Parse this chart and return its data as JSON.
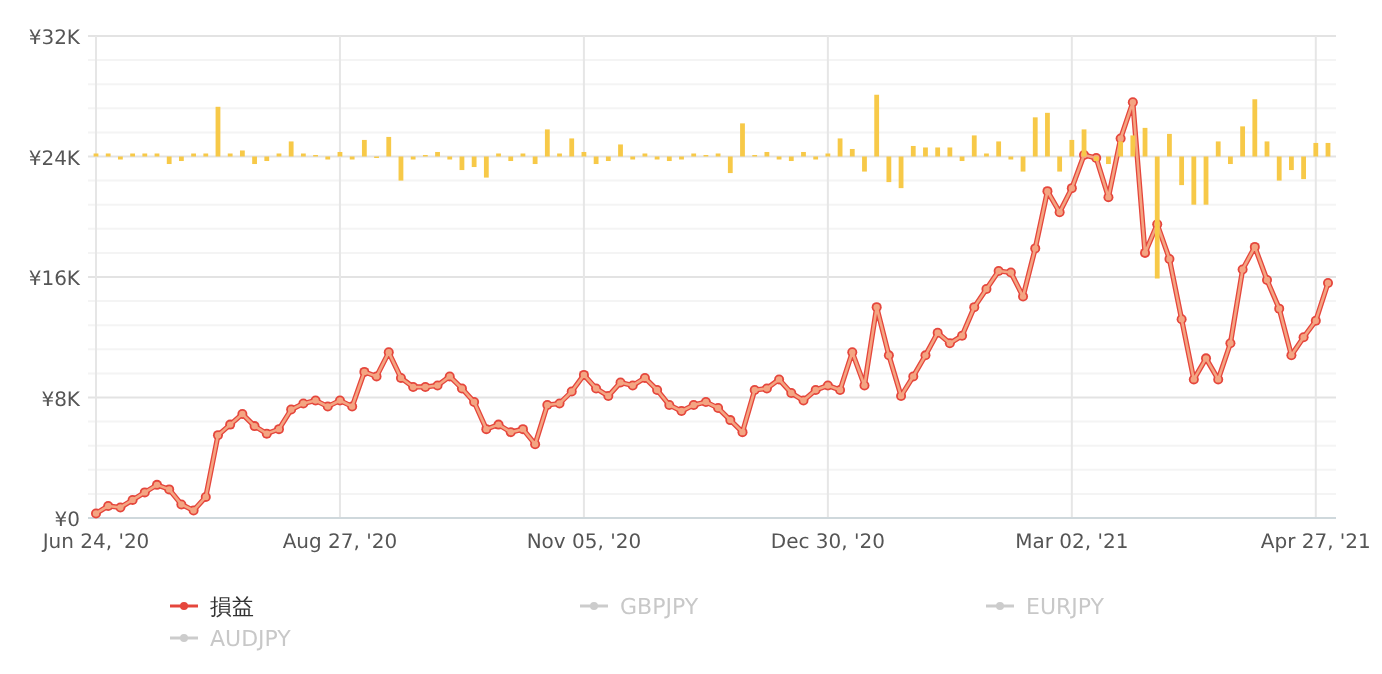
{
  "chart_data": {
    "type": "line",
    "categories": [
      "Jun 24, '20",
      null,
      null,
      null,
      null,
      null,
      null,
      null,
      null,
      null,
      null,
      null,
      null,
      null,
      null,
      null,
      null,
      null,
      null,
      null,
      "Aug 27, '20",
      null,
      null,
      null,
      null,
      null,
      null,
      null,
      null,
      null,
      null,
      null,
      null,
      null,
      null,
      null,
      null,
      null,
      null,
      null,
      "Nov 05, '20",
      null,
      null,
      null,
      null,
      null,
      null,
      null,
      null,
      null,
      null,
      null,
      null,
      null,
      null,
      null,
      null,
      null,
      null,
      null,
      "Dec 30, '20",
      null,
      null,
      null,
      null,
      null,
      null,
      null,
      null,
      null,
      null,
      null,
      null,
      null,
      null,
      null,
      null,
      null,
      null,
      null,
      "Mar 02, '21",
      null,
      null,
      null,
      null,
      null,
      null,
      null,
      null,
      null,
      null,
      null,
      null,
      null,
      null,
      null,
      null,
      null,
      null,
      null,
      "Apr 27, '21",
      null
    ],
    "series": [
      {
        "type": "bar",
        "color": "#f7c948",
        "base": [
          24000,
          24000,
          24000,
          24000,
          24000,
          24000,
          24000,
          24000,
          24000,
          24000,
          24000,
          24000,
          24000,
          24000,
          24000,
          24000,
          24000,
          24000,
          24000,
          24000,
          24000,
          24000,
          24000,
          24000,
          24000,
          24000,
          24000,
          24000,
          24000,
          24000,
          24000,
          24000,
          24000,
          24000,
          24000,
          24000,
          24000,
          24000,
          24000,
          24000,
          24000,
          24000,
          24000,
          24000,
          24000,
          24000,
          24000,
          24000,
          24000,
          24000,
          24000,
          24000,
          24000,
          24000,
          24000,
          24000,
          24000,
          24000,
          24000,
          24000,
          24000,
          24000,
          24000,
          24000,
          24000,
          24000,
          24000,
          24000,
          24000,
          24000,
          24000,
          24000,
          24000,
          24000,
          24000,
          24000,
          24000,
          24000,
          24000,
          24000,
          24000,
          24000,
          24000,
          24000,
          24000,
          24000,
          24000,
          24000,
          24000,
          24000,
          24000,
          24000,
          24000,
          24000,
          24000,
          24000,
          24000,
          24000,
          24000,
          24000,
          24000,
          24000
        ],
        "values": [
          200,
          200,
          -200,
          200,
          200,
          200,
          -500,
          -300,
          200,
          200,
          3300,
          200,
          400,
          -500,
          -300,
          200,
          1000,
          200,
          100,
          -200,
          300,
          -200,
          1100,
          -100,
          1300,
          -1600,
          -200,
          100,
          300,
          -200,
          -900,
          -700,
          -1400,
          200,
          -300,
          200,
          -500,
          1800,
          200,
          1200,
          300,
          -500,
          -300,
          800,
          -200,
          200,
          -200,
          -300,
          -200,
          200,
          100,
          200,
          -1100,
          2200,
          100,
          300,
          -200,
          -300,
          300,
          -200,
          200,
          1200,
          500,
          -1000,
          4100,
          -1700,
          -2100,
          700,
          600,
          600,
          600,
          -300,
          1400,
          200,
          1000,
          -200,
          -1000,
          2600,
          2900,
          -1000,
          1100,
          1800,
          -300,
          -500,
          1000,
          1400,
          1900,
          -8100,
          1500,
          -1900,
          -3200,
          -3200,
          1000,
          -500,
          2000,
          3800,
          1000,
          -1600,
          -900,
          -1500,
          900,
          900
        ]
      },
      {
        "name": "損益",
        "color": "#e5463c",
        "values": [
          300,
          800,
          700,
          1200,
          1700,
          2200,
          1900,
          900,
          500,
          1400,
          5500,
          6200,
          6900,
          6100,
          5600,
          5900,
          7200,
          7600,
          7800,
          7400,
          7800,
          7400,
          9700,
          9400,
          11000,
          9300,
          8700,
          8700,
          8800,
          9400,
          8600,
          7700,
          5900,
          6200,
          5700,
          5900,
          4900,
          7500,
          7600,
          8400,
          9500,
          8600,
          8100,
          9000,
          8800,
          9300,
          8500,
          7500,
          7100,
          7500,
          7700,
          7300,
          6500,
          5700,
          8500,
          8600,
          9200,
          8300,
          7800,
          8500,
          8800,
          8500,
          11000,
          8800,
          14000,
          10800,
          8100,
          9400,
          10800,
          12300,
          11600,
          12100,
          14000,
          15200,
          16400,
          16300,
          14700,
          17900,
          21700,
          20300,
          21900,
          24100,
          23900,
          21300,
          25200,
          27600,
          17600,
          19500,
          17200,
          13200,
          9200,
          10600,
          9200,
          11600,
          16500,
          18000,
          15800,
          13900,
          10800,
          12000,
          13100,
          15600
        ]
      },
      {
        "name": "GBPJPY",
        "color": "#cccccc",
        "values": [
          null,
          null,
          null,
          null,
          null,
          null,
          null,
          null,
          null,
          null,
          null,
          null,
          null,
          null,
          null,
          null,
          null,
          null,
          null,
          null,
          null,
          null,
          null,
          null,
          null,
          null,
          null,
          null,
          null,
          null,
          null,
          null,
          null,
          null,
          null,
          null,
          null,
          null,
          null,
          null,
          null,
          null,
          null,
          null,
          null,
          null,
          null,
          null,
          null,
          null,
          null,
          null,
          null,
          null,
          null,
          null,
          null,
          null,
          null,
          null,
          null,
          null,
          null,
          null,
          null,
          null,
          null,
          null,
          null,
          null,
          null,
          null,
          null,
          null,
          null,
          null,
          null,
          null,
          null,
          null,
          null,
          null,
          null,
          null,
          null,
          null,
          null,
          null,
          null,
          null,
          null,
          null,
          null,
          null,
          null,
          null,
          null,
          null,
          null,
          null,
          null,
          null
        ]
      },
      {
        "name": "EURJPY",
        "color": "#cccccc",
        "values": [
          null,
          null,
          null,
          null,
          null,
          null,
          null,
          null,
          null,
          null,
          null,
          null,
          null,
          null,
          null,
          null,
          null,
          null,
          null,
          null,
          null,
          null,
          null,
          null,
          null,
          null,
          null,
          null,
          null,
          null,
          null,
          null,
          null,
          null,
          null,
          null,
          null,
          null,
          null,
          null,
          null,
          null,
          null,
          null,
          null,
          null,
          null,
          null,
          null,
          null,
          null,
          null,
          null,
          null,
          null,
          null,
          null,
          null,
          null,
          null,
          null,
          null,
          null,
          null,
          null,
          null,
          null,
          null,
          null,
          null,
          null,
          null,
          null,
          null,
          null,
          null,
          null,
          null,
          null,
          null,
          null,
          null,
          null,
          null,
          null,
          null,
          null,
          null,
          null,
          null,
          null,
          null,
          null,
          null,
          null,
          null,
          null,
          null,
          null,
          null,
          null,
          null
        ]
      },
      {
        "name": "AUDJPY",
        "color": "#cccccc",
        "values": [
          null,
          null,
          null,
          null,
          null,
          null,
          null,
          null,
          null,
          null,
          null,
          null,
          null,
          null,
          null,
          null,
          null,
          null,
          null,
          null,
          null,
          null,
          null,
          null,
          null,
          null,
          null,
          null,
          null,
          null,
          null,
          null,
          null,
          null,
          null,
          null,
          null,
          null,
          null,
          null,
          null,
          null,
          null,
          null,
          null,
          null,
          null,
          null,
          null,
          null,
          null,
          null,
          null,
          null,
          null,
          null,
          null,
          null,
          null,
          null,
          null,
          null,
          null,
          null,
          null,
          null,
          null,
          null,
          null,
          null,
          null,
          null,
          null,
          null,
          null,
          null,
          null,
          null,
          null,
          null,
          null,
          null,
          null,
          null,
          null,
          null,
          null,
          null,
          null,
          null,
          null,
          null,
          null,
          null,
          null,
          null,
          null,
          null,
          null,
          null,
          null,
          null
        ]
      },
      {
        "color": "#f4a582",
        "values": [
          300,
          800,
          700,
          1200,
          1700,
          2200,
          1900,
          900,
          500,
          1400,
          5500,
          6200,
          6900,
          6100,
          5600,
          5900,
          7200,
          7600,
          7800,
          7400,
          7800,
          7400,
          9700,
          9400,
          11000,
          9300,
          8700,
          8700,
          8800,
          9400,
          8600,
          7700,
          5900,
          6200,
          5700,
          5900,
          4900,
          7500,
          7600,
          8400,
          9500,
          8600,
          8100,
          9000,
          8800,
          9300,
          8500,
          7500,
          7100,
          7500,
          7700,
          7300,
          6500,
          5700,
          8500,
          8600,
          9200,
          8300,
          7800,
          8500,
          8800,
          8500,
          11000,
          8800,
          14000,
          10800,
          8100,
          9400,
          10800,
          12300,
          11600,
          12100,
          14000,
          15200,
          16400,
          16300,
          14700,
          17900,
          21700,
          20300,
          21900,
          24100,
          23900,
          21300,
          25200,
          27600,
          17600,
          19500,
          17200,
          13200,
          9200,
          10600,
          9200,
          11600,
          16500,
          18000,
          15800,
          13900,
          10800,
          12000,
          13100,
          15600
        ]
      }
    ],
    "ylim": [
      0,
      32000
    ],
    "yticks": [
      {
        "value": 0,
        "label": "¥0"
      },
      {
        "value": 1600,
        "label": null
      },
      {
        "value": 3200,
        "label": null
      },
      {
        "value": 4800,
        "label": null
      },
      {
        "value": 6400,
        "label": null
      },
      {
        "value": 8000,
        "label": "¥8K"
      },
      {
        "value": 9600,
        "label": null
      },
      {
        "value": 11200,
        "label": null
      },
      {
        "value": 12800,
        "label": null
      },
      {
        "value": 14400,
        "label": null
      },
      {
        "value": 16000,
        "label": "¥16K"
      },
      {
        "value": 17600,
        "label": null
      },
      {
        "value": 19200,
        "label": null
      },
      {
        "value": 20800,
        "label": null
      },
      {
        "value": 22400,
        "label": null
      },
      {
        "value": 24000,
        "label": "¥24K"
      },
      {
        "value": 25600,
        "label": null
      },
      {
        "value": 27200,
        "label": null
      },
      {
        "value": 28800,
        "label": null
      },
      {
        "value": 30400,
        "label": null
      },
      {
        "value": 32000,
        "label": "¥32K"
      }
    ],
    "grid": true,
    "legend": "bottom",
    "marker": "circle",
    "line_style": "solid"
  }
}
